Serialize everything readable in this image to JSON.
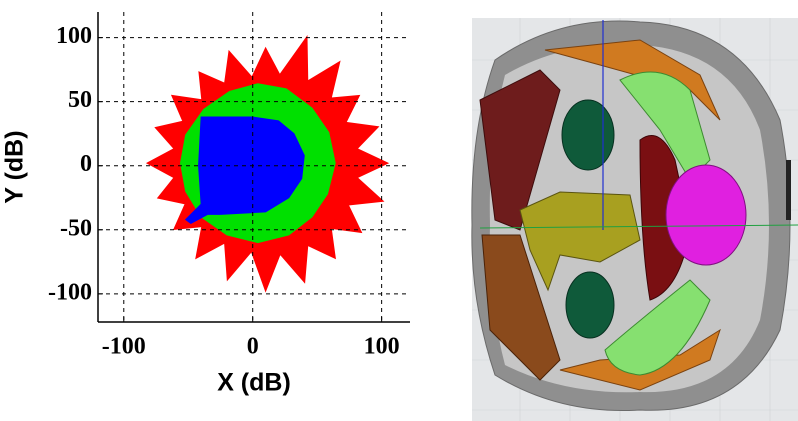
{
  "chart_data": {
    "type": "polygon",
    "xlabel": "X (dB)",
    "ylabel": "Y (dB)",
    "xlim": [
      -120,
      122
    ],
    "ylim": [
      -122,
      120
    ],
    "xticks": [
      -100,
      0,
      100
    ],
    "yticks": [
      -100,
      -50,
      0,
      50,
      100
    ],
    "grid": true,
    "series": [
      {
        "color": "#ff0000",
        "x": [
          105,
          81.1,
          97.5,
          72.4,
          82.8,
          60.9,
          67.6,
          42.7,
          42.1,
          21,
          10,
          -0.6,
          -18.4,
          -21.8,
          -41.7,
          -39.5,
          -62.8,
          -54.2,
          -75.6,
          -61.1,
          -82,
          -61.1,
          -73.7,
          -52.4,
          -61.2,
          -39.5,
          -44.1,
          -21.8,
          -19.7,
          -1,
          10,
          21.3,
          40.3,
          42.7,
          64.1,
          60.9,
          84.4,
          74.2,
          101.3,
          81.1
        ],
        "y": [
          2,
          13.3,
          30.4,
          33.8,
          54.9,
          52.9,
          81.3,
          66.2,
          100.9,
          71.1,
          92,
          69.2,
          89.5,
          64.4,
          73.2,
          51.5,
          54.9,
          34.7,
          29.8,
          13.3,
          2,
          -9.3,
          -25.2,
          -29.8,
          -49.7,
          -47.5,
          -72.4,
          -60.4,
          -89.3,
          -67.1,
          -98,
          -69.1,
          -91.2,
          -62.2,
          -72.4,
          -48.9,
          -52.1,
          -30.7,
          -27.7,
          -9.3
        ]
      },
      {
        "color": "#00e000",
        "x": [
          64,
          59,
          46,
          26,
          4,
          -18,
          -38,
          -52,
          -56,
          -52,
          -40,
          -20,
          4,
          28,
          46,
          58
        ],
        "y": [
          2,
          26,
          45,
          60,
          64,
          58,
          44,
          24,
          2,
          -20,
          -40,
          -54,
          -60,
          -54,
          -40,
          -22
        ]
      },
      {
        "color": "#0000ff",
        "x": [
          -40,
          0,
          20,
          32,
          40,
          38,
          28,
          10,
          -25,
          -35,
          -48,
          -52,
          -40,
          -42
        ],
        "y": [
          38,
          38,
          35,
          25,
          8,
          -10,
          -25,
          -36,
          -38,
          -38,
          -45,
          -42,
          -30,
          0
        ]
      }
    ]
  }
}
